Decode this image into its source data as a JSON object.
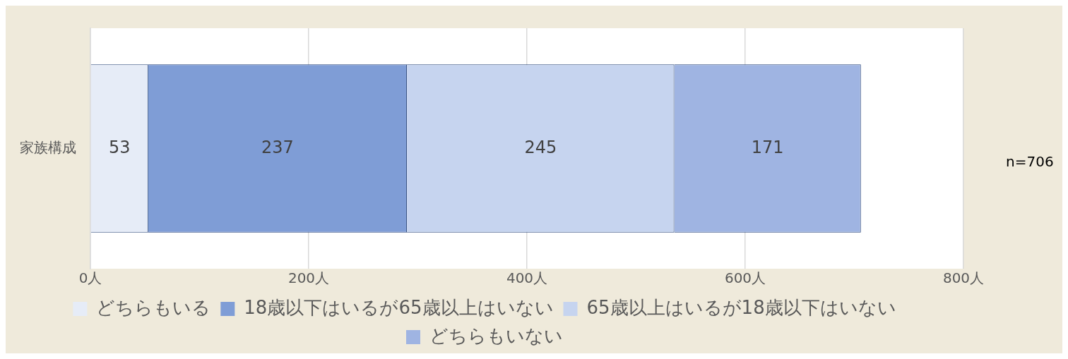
{
  "chart_data": {
    "type": "bar",
    "orientation": "horizontal",
    "stacked": true,
    "categories": [
      "家族構成"
    ],
    "series": [
      {
        "name": "どちらもいる",
        "color": "#e6ecf7",
        "values": [
          53
        ]
      },
      {
        "name": "18歳以下はいるが65歳以上はいない",
        "color": "#7f9dd6",
        "values": [
          237
        ]
      },
      {
        "name": "65歳以上はいるが18歳以下はいない",
        "color": "#c6d4ef",
        "values": [
          245
        ]
      },
      {
        "name": "どちらもいない",
        "color": "#9fb4e2",
        "values": [
          171
        ]
      }
    ],
    "xlim": [
      0,
      800
    ],
    "xticks": [
      {
        "value": 0,
        "label": "0人"
      },
      {
        "value": 200,
        "label": "200人"
      },
      {
        "value": 400,
        "label": "400人"
      },
      {
        "value": 600,
        "label": "600人"
      },
      {
        "value": 800,
        "label": "800人"
      }
    ],
    "grid": "x",
    "legend": "bottom",
    "data_labels": true,
    "annotations": [
      "n=706"
    ]
  }
}
